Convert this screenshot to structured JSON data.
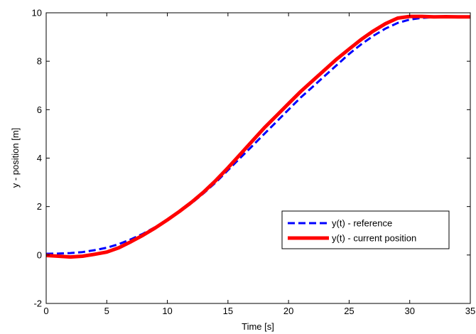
{
  "chart_data": {
    "type": "line",
    "title": "",
    "xlabel": "Time [s]",
    "ylabel": "y - position [m]",
    "xlim": [
      0,
      35
    ],
    "ylim": [
      -2,
      10
    ],
    "xticks": [
      0,
      5,
      10,
      15,
      20,
      25,
      30,
      35
    ],
    "yticks": [
      -2,
      0,
      2,
      4,
      6,
      8,
      10
    ],
    "grid": false,
    "legend_position": "lower-right",
    "series": [
      {
        "name": "y(t) - reference",
        "color": "#0000ff",
        "style": "dashed",
        "x": [
          0,
          1,
          2,
          3,
          4,
          5,
          6,
          7,
          8,
          9,
          10,
          11,
          12,
          13,
          14,
          15,
          16,
          17,
          18,
          19,
          20,
          21,
          22,
          23,
          24,
          25,
          26,
          27,
          28,
          29,
          30,
          31,
          32,
          33,
          34,
          35
        ],
        "y": [
          0.05,
          0.06,
          0.08,
          0.12,
          0.2,
          0.3,
          0.45,
          0.65,
          0.88,
          1.15,
          1.45,
          1.78,
          2.14,
          2.55,
          3.0,
          3.5,
          4.0,
          4.5,
          5.0,
          5.5,
          6.0,
          6.5,
          6.95,
          7.4,
          7.85,
          8.3,
          8.7,
          9.05,
          9.35,
          9.58,
          9.72,
          9.79,
          9.82,
          9.83,
          9.83,
          9.83
        ]
      },
      {
        "name": "y(t) - current position",
        "color": "#ff0000",
        "style": "solid",
        "x": [
          0,
          1,
          2,
          3,
          4,
          5,
          6,
          7,
          8,
          9,
          10,
          11,
          12,
          13,
          14,
          15,
          16,
          17,
          18,
          19,
          20,
          21,
          22,
          23,
          24,
          25,
          26,
          27,
          28,
          29,
          30,
          31,
          32,
          33,
          34,
          35
        ],
        "y": [
          -0.02,
          -0.05,
          -0.08,
          -0.05,
          0.03,
          0.12,
          0.3,
          0.55,
          0.82,
          1.12,
          1.45,
          1.8,
          2.18,
          2.6,
          3.08,
          3.6,
          4.15,
          4.7,
          5.25,
          5.75,
          6.25,
          6.75,
          7.2,
          7.65,
          8.1,
          8.5,
          8.9,
          9.25,
          9.55,
          9.78,
          9.85,
          9.85,
          9.83,
          9.84,
          9.83,
          9.83
        ]
      }
    ]
  }
}
